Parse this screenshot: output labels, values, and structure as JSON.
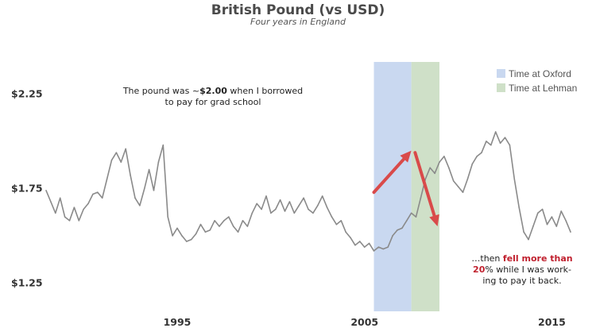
{
  "chart_data": {
    "type": "line",
    "title": "British Pound (vs USD)",
    "subtitle": "Four years in England",
    "xlabel": "",
    "ylabel": "",
    "xlim": [
      1988.0,
      2016.0
    ],
    "ylim": [
      1.1,
      2.42
    ],
    "x_ticks": [
      1995,
      2005,
      2015
    ],
    "x_tick_labels": [
      "1995",
      "2005",
      "2015"
    ],
    "y_ticks": [
      1.25,
      1.75,
      2.25
    ],
    "y_tick_labels": [
      "$1.25",
      "$1.75",
      "$2.25"
    ],
    "grid": false,
    "legend_position": "top-right",
    "series": [
      {
        "color": "#8a8a8a",
        "points": [
          [
            1988.0,
            1.74
          ],
          [
            1988.25,
            1.68
          ],
          [
            1988.5,
            1.62
          ],
          [
            1988.75,
            1.7
          ],
          [
            1989.0,
            1.6
          ],
          [
            1989.25,
            1.58
          ],
          [
            1989.5,
            1.65
          ],
          [
            1989.75,
            1.58
          ],
          [
            1990.0,
            1.64
          ],
          [
            1990.25,
            1.67
          ],
          [
            1990.5,
            1.72
          ],
          [
            1990.75,
            1.73
          ],
          [
            1991.0,
            1.7
          ],
          [
            1991.25,
            1.8
          ],
          [
            1991.5,
            1.9
          ],
          [
            1991.75,
            1.94
          ],
          [
            1992.0,
            1.89
          ],
          [
            1992.25,
            1.96
          ],
          [
            1992.5,
            1.82
          ],
          [
            1992.75,
            1.7
          ],
          [
            1993.0,
            1.66
          ],
          [
            1993.25,
            1.75
          ],
          [
            1993.5,
            1.85
          ],
          [
            1993.75,
            1.74
          ],
          [
            1994.0,
            1.89
          ],
          [
            1994.25,
            1.98
          ],
          [
            1994.5,
            1.6
          ],
          [
            1994.75,
            1.5
          ],
          [
            1995.0,
            1.54
          ],
          [
            1995.25,
            1.5
          ],
          [
            1995.5,
            1.47
          ],
          [
            1995.75,
            1.48
          ],
          [
            1996.0,
            1.51
          ],
          [
            1996.25,
            1.56
          ],
          [
            1996.5,
            1.52
          ],
          [
            1996.75,
            1.53
          ],
          [
            1997.0,
            1.58
          ],
          [
            1997.25,
            1.55
          ],
          [
            1997.5,
            1.58
          ],
          [
            1997.75,
            1.6
          ],
          [
            1998.0,
            1.55
          ],
          [
            1998.25,
            1.52
          ],
          [
            1998.5,
            1.58
          ],
          [
            1998.75,
            1.55
          ],
          [
            1999.0,
            1.62
          ],
          [
            1999.25,
            1.67
          ],
          [
            1999.5,
            1.64
          ],
          [
            1999.75,
            1.71
          ],
          [
            2000.0,
            1.62
          ],
          [
            2000.25,
            1.64
          ],
          [
            2000.5,
            1.69
          ],
          [
            2000.75,
            1.63
          ],
          [
            2001.0,
            1.68
          ],
          [
            2001.25,
            1.62
          ],
          [
            2001.5,
            1.66
          ],
          [
            2001.75,
            1.7
          ],
          [
            2002.0,
            1.64
          ],
          [
            2002.25,
            1.62
          ],
          [
            2002.5,
            1.66
          ],
          [
            2002.75,
            1.71
          ],
          [
            2003.0,
            1.65
          ],
          [
            2003.25,
            1.6
          ],
          [
            2003.5,
            1.56
          ],
          [
            2003.75,
            1.58
          ],
          [
            2004.0,
            1.52
          ],
          [
            2004.25,
            1.49
          ],
          [
            2004.5,
            1.45
          ],
          [
            2004.75,
            1.47
          ],
          [
            2005.0,
            1.44
          ],
          [
            2005.25,
            1.46
          ],
          [
            2005.5,
            1.42
          ],
          [
            2005.75,
            1.44
          ],
          [
            2006.0,
            1.43
          ],
          [
            2006.25,
            1.44
          ],
          [
            2006.5,
            1.5
          ],
          [
            2006.75,
            1.53
          ],
          [
            2007.0,
            1.54
          ],
          [
            2007.25,
            1.58
          ],
          [
            2007.5,
            1.62
          ],
          [
            2007.75,
            1.6
          ],
          [
            2008.0,
            1.7
          ],
          [
            2008.25,
            1.8
          ],
          [
            2008.5,
            1.86
          ],
          [
            2008.75,
            1.83
          ],
          [
            2009.0,
            1.89
          ],
          [
            2009.25,
            1.92
          ],
          [
            2009.5,
            1.86
          ],
          [
            2009.75,
            1.79
          ],
          [
            2010.0,
            1.76
          ],
          [
            2010.25,
            1.73
          ],
          [
            2010.5,
            1.8
          ],
          [
            2010.75,
            1.88
          ],
          [
            2011.0,
            1.92
          ],
          [
            2011.25,
            1.94
          ],
          [
            2011.5,
            2.0
          ],
          [
            2011.75,
            1.98
          ],
          [
            2012.0,
            2.05
          ],
          [
            2012.25,
            1.99
          ],
          [
            2012.5,
            2.02
          ],
          [
            2012.75,
            1.98
          ],
          [
            2013.0,
            1.8
          ],
          [
            2013.25,
            1.65
          ],
          [
            2013.5,
            1.52
          ],
          [
            2013.75,
            1.48
          ],
          [
            2014.0,
            1.55
          ],
          [
            2014.25,
            1.62
          ],
          [
            2014.5,
            1.64
          ],
          [
            2014.75,
            1.56
          ],
          [
            2015.0,
            1.6
          ],
          [
            2015.25,
            1.55
          ],
          [
            2015.5,
            1.63
          ],
          [
            2015.75,
            1.58
          ],
          [
            2016.0,
            1.52
          ]
        ]
      }
    ],
    "shaded_regions": [
      {
        "name": "Time at Oxford",
        "x_start": 2005.5,
        "x_end": 2007.5,
        "color": "#c9d8f0"
      },
      {
        "name": "Time at Lehman",
        "x_start": 2007.5,
        "x_end": 2009.0,
        "color": "#cfe0c8"
      }
    ],
    "annotations": [
      {
        "lines": [
          [
            {
              "text": "The pound was ~",
              "style": "normal"
            },
            {
              "text": "$2.00",
              "style": "bold"
            },
            {
              "text": " when I borrowed",
              "style": "normal"
            }
          ],
          [
            {
              "text": "to pay for grad school",
              "style": "normal"
            }
          ]
        ]
      },
      {
        "lines": [
          [
            {
              "text": "…then ",
              "style": "normal"
            },
            {
              "text": "fell more than",
              "style": "red"
            }
          ],
          [
            {
              "text": "20",
              "style": "red"
            },
            {
              "text": "% while I was work-",
              "style": "normal"
            }
          ],
          [
            {
              "text": "ing to pay it back.",
              "style": "normal"
            }
          ]
        ]
      }
    ],
    "arrows": [
      {
        "from": [
          2005.5,
          1.73
        ],
        "to": [
          2007.5,
          1.95
        ],
        "color": "#d94a4a"
      },
      {
        "from": [
          2007.7,
          1.94
        ],
        "to": [
          2008.9,
          1.55
        ],
        "color": "#d94a4a"
      }
    ]
  }
}
